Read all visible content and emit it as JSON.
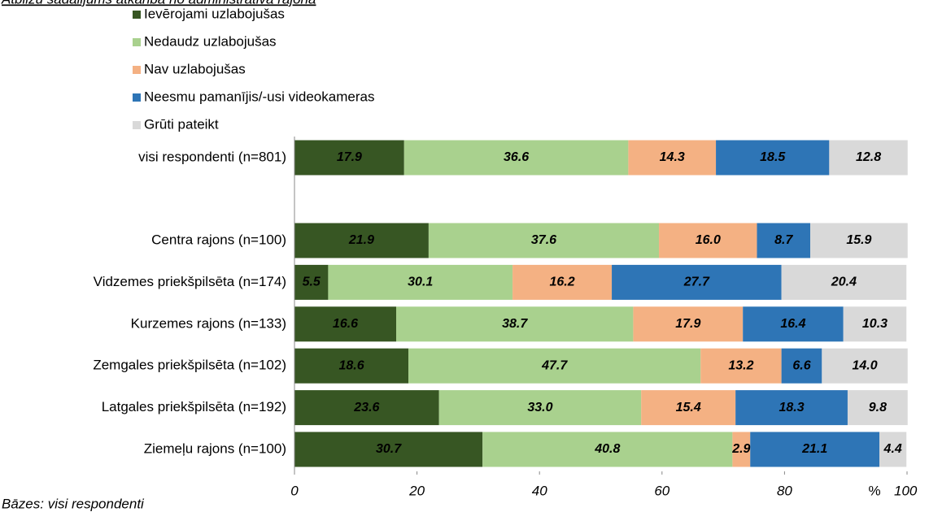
{
  "chart_data": {
    "type": "stacked-bar-horizontal",
    "title": "Atbilžu sadalījums atkarībā no administratīvā rajona",
    "footnote": "Bāzes: visi respondenti",
    "x_label": "%",
    "categories": [
      "visi respondenti (n=801)",
      "Centra rajons (n=100)",
      "Vidzemes priekšpilsēta (n=174)",
      "Kurzemes rajons (n=133)",
      "Zemgales priekšpilsēta (n=102)",
      "Latgales priekšpilsēta (n=192)",
      "Ziemeļu rajons (n=100)"
    ],
    "series": [
      {
        "name": "Ievērojami uzlabojušas",
        "color": "#375623",
        "label_color": "#ffffff",
        "values": [
          17.9,
          21.9,
          5.5,
          16.6,
          18.6,
          23.6,
          30.7
        ],
        "value_labels": [
          "17.9",
          "21.9",
          "5.5",
          "16.6",
          "18.6",
          "23.6",
          "30.7"
        ]
      },
      {
        "name": "Nedaudz uzlabojušas",
        "color": "#a9d18e",
        "label_color": "#000000",
        "values": [
          36.6,
          37.6,
          30.1,
          38.7,
          47.7,
          33.0,
          40.8
        ],
        "value_labels": [
          "36.6",
          "37.6",
          "30.1",
          "38.7",
          "47.7",
          "33.0",
          "40.8"
        ]
      },
      {
        "name": "Nav uzlabojušas",
        "color": "#f4b183",
        "label_color": "#000000",
        "values": [
          14.3,
          16.0,
          16.2,
          17.9,
          13.2,
          15.4,
          2.9
        ],
        "value_labels": [
          "14.3",
          "16.0",
          "16.2",
          "17.9",
          "13.2",
          "15.4",
          "2.9"
        ]
      },
      {
        "name": "Neesmu pamanījis/-usi videokameras",
        "color": "#2e75b6",
        "label_color": "#ffffff",
        "values": [
          18.5,
          8.7,
          27.7,
          16.4,
          6.6,
          18.3,
          21.1
        ],
        "value_labels": [
          "18.5",
          "8.7",
          "27.7",
          "16.4",
          "6.6",
          "18.3",
          "21.1"
        ]
      },
      {
        "name": "Grūti pateikt",
        "color": "#d9d9d9",
        "label_color": "#000000",
        "values": [
          12.8,
          15.9,
          20.4,
          10.3,
          14.0,
          9.8,
          4.4
        ],
        "value_labels": [
          "12.8",
          "15.9",
          "20.4",
          "10.3",
          "14.0",
          "9.8",
          "4.4"
        ]
      }
    ],
    "xlim": [
      0,
      100
    ],
    "xticks": [
      0,
      20,
      40,
      60,
      80,
      100
    ]
  }
}
